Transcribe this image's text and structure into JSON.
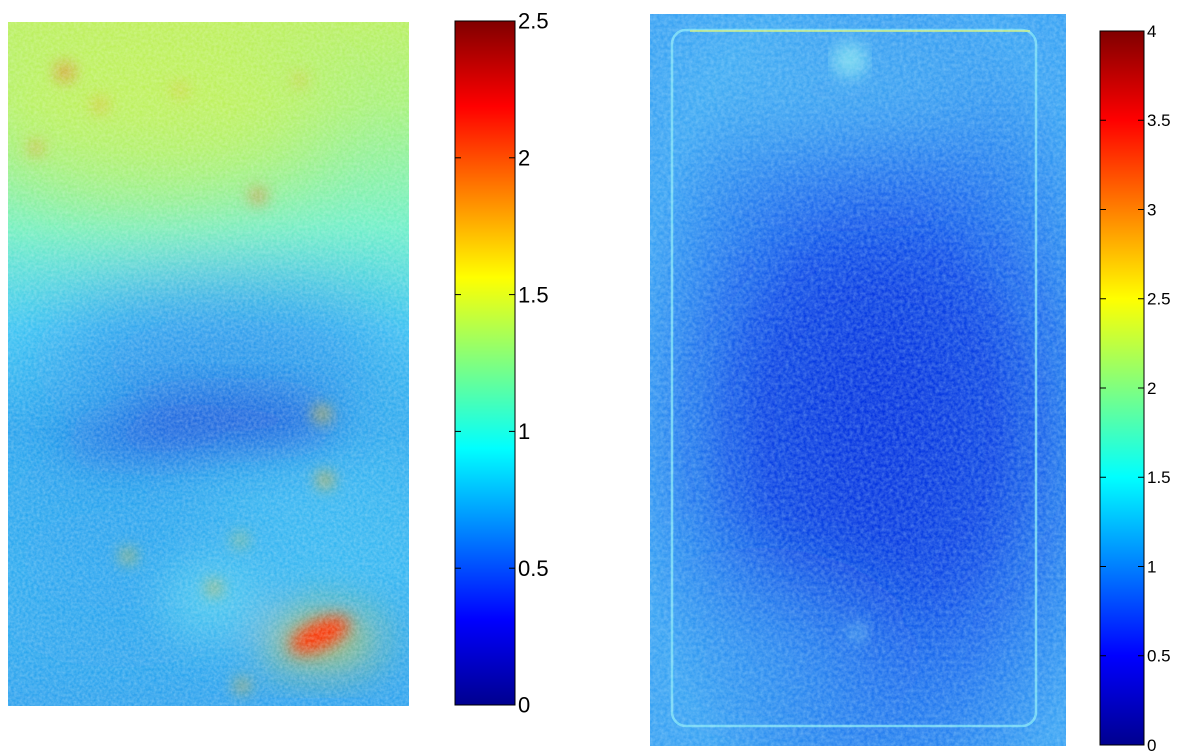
{
  "chart_data": [
    {
      "type": "heatmap",
      "title": "",
      "xlabel": "",
      "ylabel": "",
      "colormap": "jet",
      "clim": [
        0,
        2.5
      ],
      "colorbar": {
        "ticks": [
          0,
          0.5,
          1,
          1.5,
          2,
          2.5
        ],
        "tick_labels": [
          "0",
          "0.5",
          "1",
          "1.5",
          "2",
          "2.5"
        ],
        "placement": "right"
      },
      "description_values": {
        "background_level": 1.05,
        "upper_region_level": 1.45,
        "central_low_level": 0.45,
        "hot_spot_level": 2.3
      }
    },
    {
      "type": "heatmap",
      "title": "",
      "xlabel": "",
      "ylabel": "",
      "colormap": "jet",
      "clim": [
        0,
        4
      ],
      "colorbar": {
        "ticks": [
          0,
          0.5,
          1,
          1.5,
          2,
          2.5,
          3,
          3.5,
          4
        ],
        "tick_labels": [
          "0",
          "0.5",
          "1",
          "1.5",
          "2",
          "2.5",
          "3",
          "3.5",
          "4"
        ],
        "placement": "right"
      },
      "description_values": {
        "background_level": 1.0,
        "upper_region_level": 1.4,
        "central_low_level": 0.35,
        "edge_level": 1.6
      }
    }
  ]
}
